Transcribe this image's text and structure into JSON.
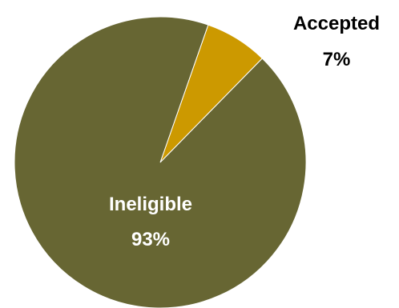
{
  "chart_data": {
    "type": "pie",
    "slices": [
      {
        "label": "Accepted",
        "percent_label": "7%",
        "value": 7,
        "color": "#cc9900"
      },
      {
        "label": "Ineligible",
        "percent_label": "93%",
        "value": 93,
        "color": "#676633"
      }
    ],
    "start": "top, clockwise from about 1 o'clock",
    "legend": "none"
  }
}
